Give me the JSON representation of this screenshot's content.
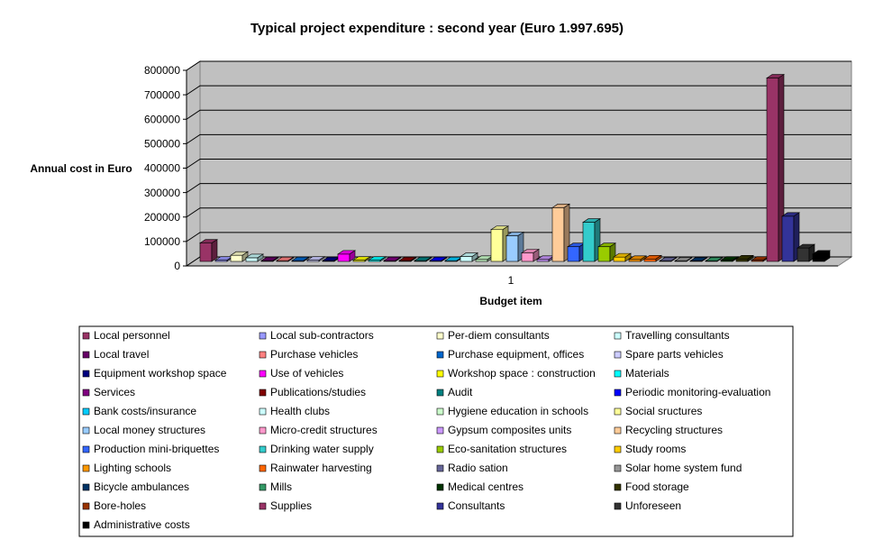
{
  "chart_data": {
    "type": "bar3d",
    "title": "Typical project expenditure : second year (Euro 1.997.695)",
    "x_label": "Budget item",
    "y_label": "Annual cost in Euro",
    "categories": [
      "1"
    ],
    "ylim": [
      0,
      800000
    ],
    "yticks": [
      0,
      100000,
      200000,
      300000,
      400000,
      500000,
      600000,
      700000,
      800000
    ],
    "grid": true,
    "legend": "bottom",
    "series": [
      {
        "name": "Local personnel",
        "color": "#993366",
        "values": [
          75000
        ]
      },
      {
        "name": "Local sub-contractors",
        "color": "#9999ff",
        "values": [
          5000
        ]
      },
      {
        "name": "Per-diem consultants",
        "color": "#ffffcc",
        "values": [
          25000
        ]
      },
      {
        "name": "Travelling consultants",
        "color": "#ccffff",
        "values": [
          15000
        ]
      },
      {
        "name": "Local travel",
        "color": "#660066",
        "values": [
          3000
        ]
      },
      {
        "name": "Purchase vehicles",
        "color": "#ff8080",
        "values": [
          3000
        ]
      },
      {
        "name": "Purchase equipment, offices",
        "color": "#0066cc",
        "values": [
          3000
        ]
      },
      {
        "name": "Spare parts vehicles",
        "color": "#ccccff",
        "values": [
          5000
        ]
      },
      {
        "name": "Equipment workshop space",
        "color": "#000080",
        "values": [
          3000
        ]
      },
      {
        "name": "Use of vehicles",
        "color": "#ff00ff",
        "values": [
          30000
        ]
      },
      {
        "name": "Workshop space : construction",
        "color": "#ffff00",
        "values": [
          5000
        ]
      },
      {
        "name": "Materials",
        "color": "#00ffff",
        "values": [
          5000
        ]
      },
      {
        "name": "Services",
        "color": "#800080",
        "values": [
          3000
        ]
      },
      {
        "name": "Publications/studies",
        "color": "#800000",
        "values": [
          3000
        ]
      },
      {
        "name": "Audit",
        "color": "#008080",
        "values": [
          3000
        ]
      },
      {
        "name": "Periodic monitoring-evaluation",
        "color": "#0000ff",
        "values": [
          3000
        ]
      },
      {
        "name": "Bank costs/insurance",
        "color": "#00ccff",
        "values": [
          3000
        ]
      },
      {
        "name": "Health clubs",
        "color": "#ccffff",
        "values": [
          20000
        ]
      },
      {
        "name": "Hygiene education in schools",
        "color": "#ccffcc",
        "values": [
          8000
        ]
      },
      {
        "name": "Social sructures",
        "color": "#ffff99",
        "values": [
          130000
        ]
      },
      {
        "name": "Local money structures",
        "color": "#99ccff",
        "values": [
          105000
        ]
      },
      {
        "name": "Micro-credit structures",
        "color": "#ff99cc",
        "values": [
          35000
        ]
      },
      {
        "name": "Gypsum composites units",
        "color": "#cc99ff",
        "values": [
          8000
        ]
      },
      {
        "name": "Recycling structures",
        "color": "#ffcc99",
        "values": [
          220000
        ]
      },
      {
        "name": "Production mini-briquettes",
        "color": "#3366ff",
        "values": [
          60000
        ]
      },
      {
        "name": "Drinking water supply",
        "color": "#33cccc",
        "values": [
          160000
        ]
      },
      {
        "name": "Eco-sanitation structures",
        "color": "#99cc00",
        "values": [
          60000
        ]
      },
      {
        "name": "Study rooms",
        "color": "#ffcc00",
        "values": [
          18000
        ]
      },
      {
        "name": "Lighting schools",
        "color": "#ff9900",
        "values": [
          8000
        ]
      },
      {
        "name": "Rainwater harvesting",
        "color": "#ff6600",
        "values": [
          10000
        ]
      },
      {
        "name": "Radio sation",
        "color": "#666699",
        "values": [
          2000
        ]
      },
      {
        "name": "Solar home system fund",
        "color": "#969696",
        "values": [
          2000
        ]
      },
      {
        "name": "Bicycle ambulances",
        "color": "#003366",
        "values": [
          2000
        ]
      },
      {
        "name": "Mills",
        "color": "#339966",
        "values": [
          2000
        ]
      },
      {
        "name": "Medical centres",
        "color": "#003300",
        "values": [
          5000
        ]
      },
      {
        "name": "Food storage",
        "color": "#333300",
        "values": [
          10000
        ]
      },
      {
        "name": "Bore-holes",
        "color": "#993300",
        "values": [
          5000
        ]
      },
      {
        "name": "Supplies",
        "color": "#993366",
        "values": [
          750000
        ]
      },
      {
        "name": "Consultants",
        "color": "#333399",
        "values": [
          185000
        ]
      },
      {
        "name": "Unforeseen",
        "color": "#333333",
        "values": [
          55000
        ]
      },
      {
        "name": "Administrative costs",
        "color": "#000000",
        "values": [
          30000
        ]
      }
    ]
  }
}
